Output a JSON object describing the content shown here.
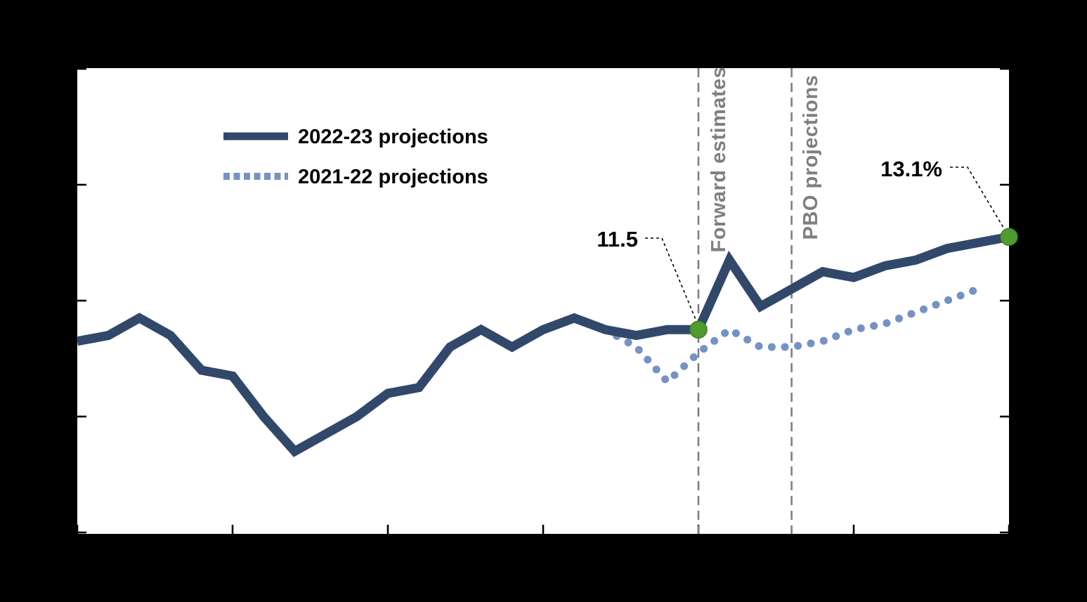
{
  "colors": {
    "background": "#000000",
    "plot_background": "#ffffff",
    "solid_series": "#31486A",
    "dotted_series": "#7592C5",
    "marker_green_fill": "#4E9B30",
    "marker_green_stroke": "#3E7D26",
    "reference_gray": "#7F7F7F",
    "axis_black": "#000000"
  },
  "legend": {
    "items": [
      {
        "label": "2022-23 projections",
        "style": "solid"
      },
      {
        "label": "2021-22 projections",
        "style": "dotted"
      }
    ]
  },
  "reference_lines": [
    {
      "label": "Forward estimates",
      "x_index": 20
    },
    {
      "label": "PBO projections",
      "x_index": 23
    }
  ],
  "annotations": [
    {
      "label": "11.5",
      "x_index": 20,
      "value": 11.5
    },
    {
      "label": "13.1%",
      "x_index": 30,
      "value": 13.1
    }
  ],
  "chart_data": {
    "type": "line",
    "title": "",
    "xlabel": "",
    "ylabel": "",
    "x_axis": {
      "num_points": 31,
      "tick_indices": [
        0,
        5,
        10,
        15,
        20,
        25,
        30
      ],
      "tick_labels_visible": false
    },
    "y_axis": {
      "tick_values": [
        8,
        10,
        12,
        14,
        16
      ],
      "tick_labels_visible": false,
      "approx_range": [
        7.96,
        16.0
      ]
    },
    "legend_position": "upper-left-inside",
    "grid": false,
    "series": [
      {
        "name": "2022-23 projections",
        "style": "solid",
        "start_index": 0,
        "values": [
          11.3,
          11.4,
          11.7,
          11.4,
          10.8,
          10.7,
          10.0,
          9.4,
          9.7,
          10.0,
          10.4,
          10.5,
          11.2,
          11.5,
          11.2,
          11.5,
          11.7,
          11.5,
          11.4,
          11.5,
          11.5,
          12.7,
          11.9,
          12.2,
          12.5,
          12.4,
          12.6,
          12.7,
          12.9,
          13.0,
          13.1
        ]
      },
      {
        "name": "2021-22 projections",
        "style": "dotted",
        "start_index": 17,
        "values": [
          11.5,
          11.2,
          10.6,
          11.1,
          11.5,
          11.2,
          11.2,
          11.3,
          11.5,
          11.6,
          11.8,
          12.0,
          12.2
        ]
      }
    ],
    "highlighted_points": [
      {
        "label": "11.5",
        "x_index": 20,
        "value": 11.5
      },
      {
        "label": "13.1%",
        "x_index": 30,
        "value": 13.1
      }
    ]
  }
}
